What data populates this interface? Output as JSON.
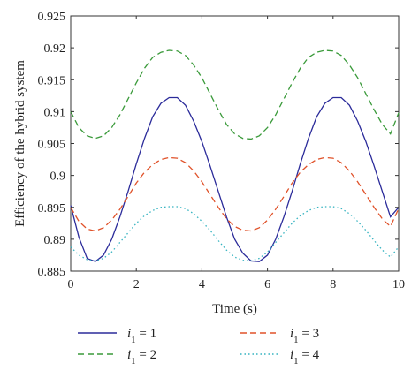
{
  "chart_data": {
    "type": "line",
    "xlabel": "Time (s)",
    "ylabel": "Efficiency of the hybrid system",
    "xlim": [
      0,
      10
    ],
    "ylim": [
      0.885,
      0.925
    ],
    "xticks": [
      "0",
      "2",
      "4",
      "6",
      "8",
      "10"
    ],
    "yticks": [
      "0.885",
      "0.89",
      "0.895",
      "0.9",
      "0.905",
      "0.91",
      "0.915",
      "0.92",
      "0.925"
    ],
    "grid": false,
    "legend_position": "bottom",
    "x": [
      0,
      0.25,
      0.5,
      0.75,
      1,
      1.25,
      1.5,
      1.75,
      2,
      2.25,
      2.5,
      2.75,
      3,
      3.25,
      3.5,
      3.75,
      4,
      4.25,
      4.5,
      4.75,
      5,
      5.25,
      5.5,
      5.75,
      6,
      6.25,
      6.5,
      6.75,
      7,
      7.25,
      7.5,
      7.75,
      8,
      8.25,
      8.5,
      8.75,
      9,
      9.25,
      9.5,
      9.75,
      10
    ],
    "series": [
      {
        "name": "i1 = 1",
        "label_var": "i",
        "label_sub": "1",
        "label_eq": " = 1",
        "color": "#2b2b9a",
        "dash": "solid",
        "values": [
          0.8953,
          0.8903,
          0.887,
          0.8865,
          0.8875,
          0.89,
          0.8935,
          0.8975,
          0.9018,
          0.9058,
          0.9092,
          0.9113,
          0.9122,
          0.9122,
          0.911,
          0.9085,
          0.9053,
          0.9015,
          0.8975,
          0.8935,
          0.89,
          0.8878,
          0.8866,
          0.8865,
          0.8875,
          0.89,
          0.8935,
          0.8975,
          0.9018,
          0.9058,
          0.9092,
          0.9113,
          0.9122,
          0.9122,
          0.911,
          0.9085,
          0.9053,
          0.9015,
          0.8975,
          0.8935,
          0.895
        ]
      },
      {
        "name": "i1 = 2",
        "label_var": "i",
        "label_sub": "1",
        "label_eq": " = 2",
        "color": "#3a9a3a",
        "dash": "7,4",
        "values": [
          0.91,
          0.9075,
          0.9062,
          0.9058,
          0.9062,
          0.9075,
          0.9095,
          0.912,
          0.9145,
          0.9168,
          0.9185,
          0.9193,
          0.9196,
          0.9195,
          0.9188,
          0.9173,
          0.9153,
          0.9128,
          0.9103,
          0.908,
          0.9065,
          0.9058,
          0.9057,
          0.9062,
          0.9075,
          0.9095,
          0.912,
          0.9145,
          0.9168,
          0.9185,
          0.9193,
          0.9196,
          0.9195,
          0.9188,
          0.9173,
          0.9153,
          0.9128,
          0.9103,
          0.908,
          0.9065,
          0.9098
        ]
      },
      {
        "name": "i1 = 3",
        "label_var": "i",
        "label_sub": "1",
        "label_eq": " = 3",
        "color": "#e0522a",
        "dash": "7,4",
        "values": [
          0.895,
          0.8928,
          0.8916,
          0.8913,
          0.8918,
          0.893,
          0.8947,
          0.8967,
          0.8988,
          0.9005,
          0.9017,
          0.9025,
          0.9028,
          0.9027,
          0.902,
          0.9007,
          0.899,
          0.897,
          0.895,
          0.8932,
          0.892,
          0.8914,
          0.8913,
          0.8918,
          0.893,
          0.8947,
          0.8967,
          0.8988,
          0.9005,
          0.9017,
          0.9025,
          0.9028,
          0.9027,
          0.902,
          0.9007,
          0.899,
          0.897,
          0.895,
          0.8932,
          0.892,
          0.8948
        ]
      },
      {
        "name": "i1 = 4",
        "label_var": "i",
        "label_sub": "1",
        "label_eq": " = 4",
        "color": "#35b3c0",
        "dash": "1.5,3",
        "values": [
          0.8888,
          0.8875,
          0.8868,
          0.8866,
          0.887,
          0.888,
          0.8895,
          0.891,
          0.8925,
          0.8937,
          0.8945,
          0.895,
          0.8951,
          0.8951,
          0.8948,
          0.894,
          0.8928,
          0.8914,
          0.8898,
          0.8883,
          0.8872,
          0.8867,
          0.8866,
          0.887,
          0.888,
          0.8895,
          0.891,
          0.8925,
          0.8937,
          0.8945,
          0.895,
          0.8951,
          0.8951,
          0.8948,
          0.894,
          0.8928,
          0.8914,
          0.8898,
          0.8883,
          0.8872,
          0.8888
        ]
      }
    ]
  }
}
